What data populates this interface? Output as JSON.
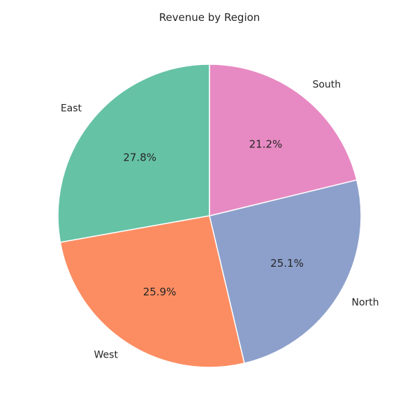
{
  "chart_data": {
    "type": "pie",
    "title": "Revenue by Region",
    "start_angle_deg": 90,
    "direction": "counterclockwise",
    "slices": [
      {
        "label": "East",
        "value": 27.8,
        "pct_label": "27.8%",
        "color": "#66c2a5"
      },
      {
        "label": "West",
        "value": 25.9,
        "pct_label": "25.9%",
        "color": "#fc8d62"
      },
      {
        "label": "North",
        "value": 25.1,
        "pct_label": "25.1%",
        "color": "#8da0cb"
      },
      {
        "label": "South",
        "value": 21.2,
        "pct_label": "21.2%",
        "color": "#e78ac3"
      }
    ]
  }
}
